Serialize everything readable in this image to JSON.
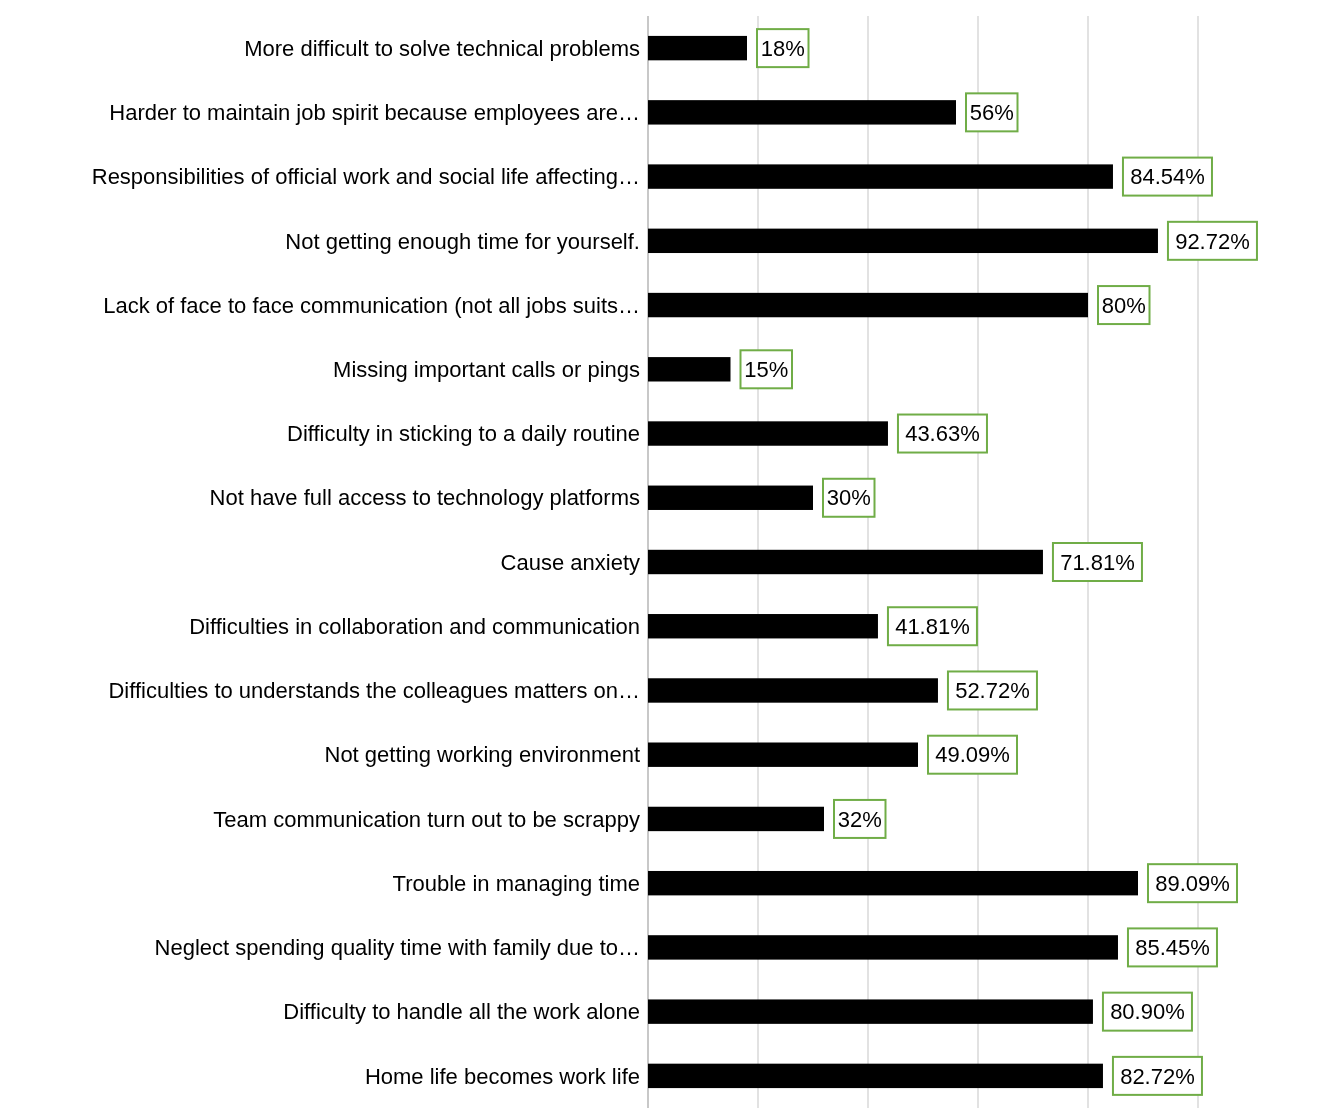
{
  "chart_data": {
    "type": "bar",
    "orientation": "horizontal",
    "categories": [
      "More difficult to solve technical problems",
      "Harder to maintain job spirit because employees are…",
      "Responsibilities of official work and social life affecting…",
      "Not getting enough time for yourself.",
      "Lack of face to face communication (not all jobs suits…",
      "Missing important calls or pings",
      "Difficulty in sticking to a daily routine",
      "Not have full access to technology platforms",
      "Cause anxiety",
      "Difficulties in collaboration and communication",
      "Difficulties to understands the colleagues matters on…",
      "Not getting working environment",
      "Team communication turn out to be scrappy",
      "Trouble in managing time",
      "Neglect spending quality time with family due to…",
      "Difficulty to handle all the work alone",
      "Home life becomes work life"
    ],
    "values": [
      18,
      56,
      84.54,
      92.72,
      80,
      15,
      43.63,
      30,
      71.81,
      41.81,
      52.72,
      49.09,
      32,
      89.09,
      85.45,
      80.9,
      82.72
    ],
    "value_labels": [
      "18%",
      "56%",
      "84.54%",
      "92.72%",
      "80%",
      "15%",
      "43.63%",
      "30%",
      "71.81%",
      "41.81%",
      "52.72%",
      "49.09%",
      "32%",
      "89.09%",
      "85.45%",
      "80.90%",
      "82.72%"
    ],
    "color": "#000000",
    "xlim": [
      0,
      100
    ],
    "xticks": [
      {
        "value": 0,
        "label": null
      },
      {
        "value": 20,
        "label": null
      },
      {
        "value": 40,
        "label": null
      },
      {
        "value": 60,
        "label": null
      },
      {
        "value": 80,
        "label": null
      },
      {
        "value": 100,
        "label": null
      }
    ],
    "tick_labels": "y",
    "grid": "x"
  }
}
